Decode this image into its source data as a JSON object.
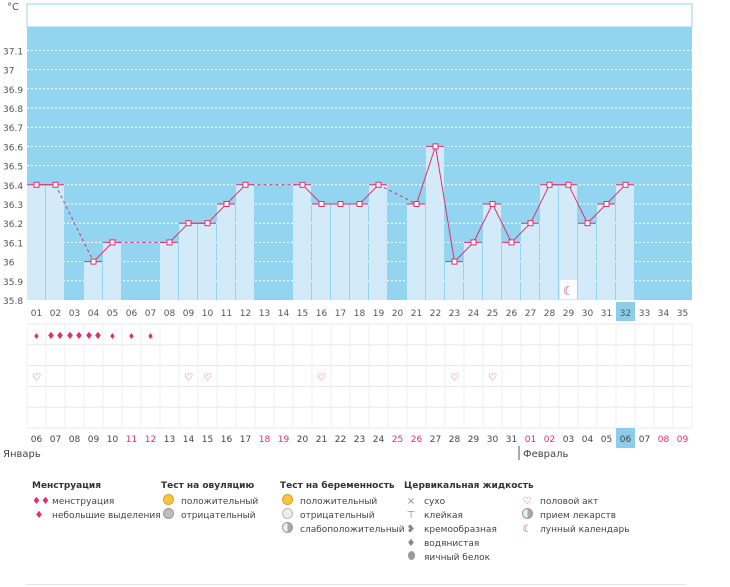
{
  "chart": {
    "unit_label": "°C",
    "ylim": [
      35.8,
      37.15
    ],
    "y_ticks": [
      "35.8",
      "35.9",
      "36",
      "36.1",
      "36.2",
      "36.3",
      "36.4",
      "36.5",
      "36.6",
      "36.7",
      "36.8",
      "36.9",
      "37",
      "37.1"
    ],
    "cycle_days": [
      "01",
      "02",
      "03",
      "04",
      "05",
      "06",
      "07",
      "08",
      "09",
      "10",
      "11",
      "12",
      "13",
      "14",
      "15",
      "16",
      "17",
      "18",
      "19",
      "20",
      "21",
      "22",
      "23",
      "24",
      "25",
      "26",
      "27",
      "28",
      "29",
      "30",
      "31",
      "32",
      "33",
      "34",
      "35"
    ],
    "highlight_day_index": 31
  },
  "chart_data": {
    "type": "bar",
    "title": "",
    "ylabel": "°C",
    "xlabel": "",
    "categories": [
      "01",
      "02",
      "03",
      "04",
      "05",
      "06",
      "07",
      "08",
      "09",
      "10",
      "11",
      "12",
      "13",
      "14",
      "15",
      "16",
      "17",
      "18",
      "19",
      "20",
      "21",
      "22",
      "23",
      "24",
      "25",
      "26",
      "27",
      "28",
      "29",
      "30",
      "31",
      "32",
      "33",
      "34",
      "35"
    ],
    "values": [
      36.4,
      36.4,
      null,
      36.0,
      36.1,
      null,
      null,
      36.1,
      36.2,
      36.2,
      36.3,
      36.4,
      null,
      null,
      36.4,
      36.3,
      36.3,
      36.3,
      36.4,
      null,
      36.3,
      36.6,
      36.0,
      36.1,
      36.3,
      36.1,
      36.2,
      36.4,
      36.4,
      36.2,
      36.3,
      36.4,
      null,
      null,
      null
    ],
    "ylim": [
      35.8,
      37.1
    ]
  },
  "symptoms": {
    "menstruation_rows": [
      [
        "drop-small",
        "drop-big",
        "drop-big",
        "drop-big",
        "drop-small",
        "drop-small",
        "drop-small"
      ]
    ],
    "intercourse_days": [
      0,
      8,
      9,
      15,
      22,
      24
    ]
  },
  "dates": {
    "days": [
      {
        "d": "06",
        "w": false
      },
      {
        "d": "07",
        "w": false
      },
      {
        "d": "08",
        "w": false
      },
      {
        "d": "09",
        "w": false
      },
      {
        "d": "10",
        "w": false
      },
      {
        "d": "11",
        "w": true
      },
      {
        "d": "12",
        "w": true
      },
      {
        "d": "13",
        "w": false
      },
      {
        "d": "14",
        "w": false
      },
      {
        "d": "15",
        "w": false
      },
      {
        "d": "16",
        "w": false
      },
      {
        "d": "17",
        "w": false
      },
      {
        "d": "18",
        "w": true
      },
      {
        "d": "19",
        "w": true
      },
      {
        "d": "20",
        "w": false
      },
      {
        "d": "21",
        "w": false
      },
      {
        "d": "22",
        "w": false
      },
      {
        "d": "23",
        "w": false
      },
      {
        "d": "24",
        "w": false
      },
      {
        "d": "25",
        "w": true
      },
      {
        "d": "26",
        "w": true
      },
      {
        "d": "27",
        "w": false
      },
      {
        "d": "28",
        "w": false
      },
      {
        "d": "29",
        "w": false
      },
      {
        "d": "30",
        "w": false
      },
      {
        "d": "31",
        "w": false
      },
      {
        "d": "01",
        "w": true
      },
      {
        "d": "02",
        "w": true
      },
      {
        "d": "03",
        "w": false
      },
      {
        "d": "04",
        "w": false
      },
      {
        "d": "05",
        "w": false
      },
      {
        "d": "06",
        "w": false
      },
      {
        "d": "07",
        "w": false
      },
      {
        "d": "08",
        "w": true
      },
      {
        "d": "09",
        "w": true
      }
    ],
    "month_january": "Январь",
    "month_february": "Февраль"
  },
  "legend": {
    "menstruation": {
      "title": "Менструация",
      "items": [
        "менструация",
        "небольшие выделения"
      ]
    },
    "ovulation": {
      "title": "Тест на овуляцию",
      "items": [
        "положительный",
        "отрицательный"
      ]
    },
    "pregnancy": {
      "title": "Тест на беременность",
      "items": [
        "положительный",
        "отрицательный",
        "слабоположительный"
      ]
    },
    "cervical": {
      "title": "Цервикальная жидкость",
      "items": [
        "сухо",
        "клейкая",
        "кремообразная",
        "водянистая",
        "яичный белок"
      ]
    },
    "other": {
      "items": [
        "половой акт",
        "прием лекарств",
        "лунный календарь"
      ]
    }
  },
  "colors": {
    "plot_bg": "#93d4f0",
    "bar": "#d3ebf9",
    "line": "#e0306a",
    "highlight": "#8ccdeb",
    "weekend": "#e0306a"
  }
}
